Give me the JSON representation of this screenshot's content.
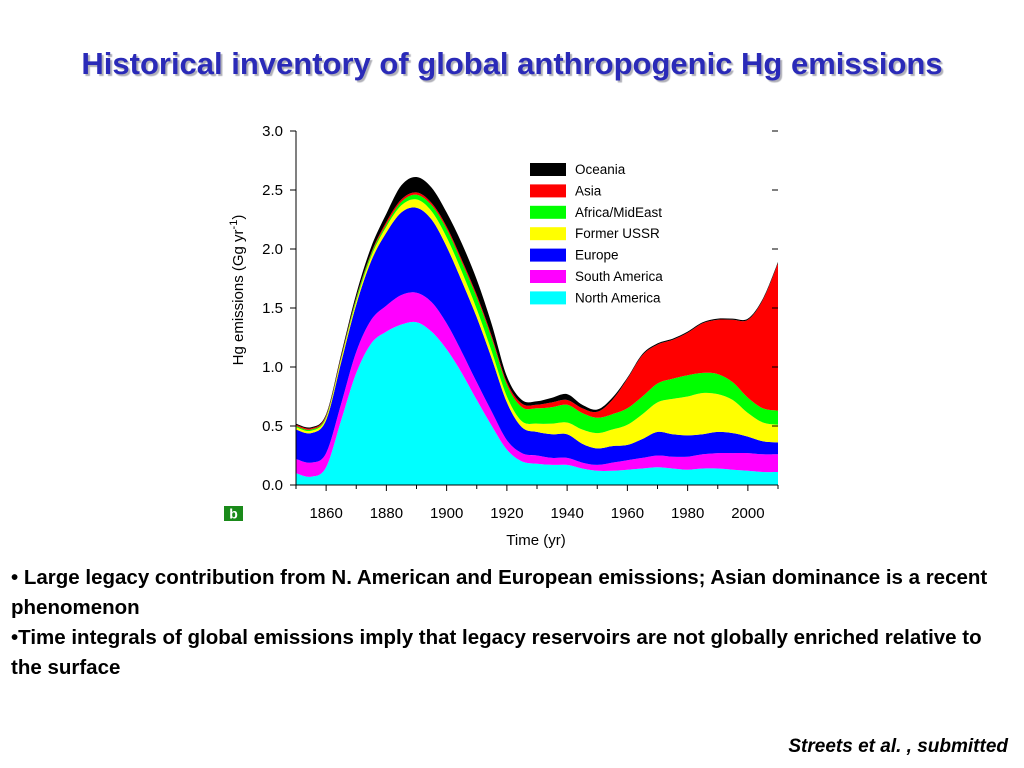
{
  "slide": {
    "title": "Historical inventory of global anthropogenic Hg emissions",
    "bullets": [
      "• Large legacy contribution from N. American and European emissions; Asian dominance is a recent phenomenon",
      "•Time integrals of global emissions imply that legacy reservoirs are not globally enriched relative to the surface"
    ],
    "citation": "Streets et al. , submitted"
  },
  "chart_data": {
    "type": "area",
    "stacked": true,
    "panel_label": "b",
    "xlabel": "Time (yr)",
    "ylabel": "Hg emissions (Gg yr-1)",
    "xlim": [
      1850,
      2010
    ],
    "ylim": [
      0,
      3.0
    ],
    "xticks": [
      1860,
      1880,
      1900,
      1920,
      1940,
      1960,
      1980,
      2000
    ],
    "yticks": [
      "0.0",
      "0.5",
      "1.0",
      "1.5",
      "2.0",
      "2.5",
      "3.0"
    ],
    "legend_position": "top-right",
    "x": [
      1850,
      1855,
      1860,
      1865,
      1870,
      1875,
      1880,
      1885,
      1890,
      1895,
      1900,
      1905,
      1910,
      1915,
      1920,
      1925,
      1930,
      1935,
      1940,
      1945,
      1950,
      1955,
      1960,
      1965,
      1970,
      1975,
      1980,
      1985,
      1990,
      1995,
      2000,
      2005,
      2010
    ],
    "series": [
      {
        "name": "North America",
        "color": "#00ffff",
        "values": [
          0.1,
          0.07,
          0.15,
          0.55,
          0.95,
          1.2,
          1.3,
          1.36,
          1.38,
          1.3,
          1.15,
          0.95,
          0.72,
          0.5,
          0.3,
          0.2,
          0.18,
          0.17,
          0.17,
          0.14,
          0.12,
          0.12,
          0.13,
          0.14,
          0.15,
          0.14,
          0.13,
          0.14,
          0.14,
          0.13,
          0.12,
          0.11,
          0.11
        ]
      },
      {
        "name": "South America",
        "color": "#ff00ff",
        "values": [
          0.12,
          0.12,
          0.12,
          0.14,
          0.18,
          0.2,
          0.22,
          0.25,
          0.25,
          0.25,
          0.22,
          0.18,
          0.15,
          0.12,
          0.08,
          0.07,
          0.07,
          0.06,
          0.06,
          0.05,
          0.05,
          0.07,
          0.08,
          0.09,
          0.1,
          0.1,
          0.11,
          0.12,
          0.13,
          0.14,
          0.15,
          0.15,
          0.15
        ]
      },
      {
        "name": "Europe",
        "color": "#0000ff",
        "values": [
          0.25,
          0.25,
          0.28,
          0.35,
          0.4,
          0.5,
          0.62,
          0.7,
          0.72,
          0.7,
          0.65,
          0.6,
          0.55,
          0.45,
          0.32,
          0.22,
          0.2,
          0.2,
          0.2,
          0.16,
          0.14,
          0.14,
          0.13,
          0.16,
          0.2,
          0.19,
          0.18,
          0.17,
          0.18,
          0.17,
          0.14,
          0.11,
          0.1
        ]
      },
      {
        "name": "Former USSR",
        "color": "#ffff00",
        "values": [
          0.02,
          0.02,
          0.02,
          0.03,
          0.03,
          0.04,
          0.05,
          0.06,
          0.07,
          0.07,
          0.08,
          0.08,
          0.07,
          0.06,
          0.05,
          0.05,
          0.07,
          0.09,
          0.1,
          0.12,
          0.13,
          0.14,
          0.17,
          0.21,
          0.25,
          0.3,
          0.33,
          0.35,
          0.32,
          0.28,
          0.2,
          0.16,
          0.15
        ]
      },
      {
        "name": "Africa/MidEast",
        "color": "#00ff00",
        "values": [
          0.01,
          0.01,
          0.01,
          0.01,
          0.02,
          0.02,
          0.02,
          0.03,
          0.04,
          0.05,
          0.07,
          0.08,
          0.1,
          0.11,
          0.1,
          0.12,
          0.13,
          0.14,
          0.15,
          0.14,
          0.13,
          0.13,
          0.14,
          0.15,
          0.16,
          0.17,
          0.18,
          0.17,
          0.17,
          0.15,
          0.13,
          0.12,
          0.12
        ]
      },
      {
        "name": "Asia",
        "color": "#ff0000",
        "values": [
          0.01,
          0.01,
          0.01,
          0.01,
          0.01,
          0.01,
          0.02,
          0.02,
          0.02,
          0.02,
          0.02,
          0.02,
          0.02,
          0.02,
          0.02,
          0.03,
          0.03,
          0.04,
          0.04,
          0.04,
          0.05,
          0.12,
          0.25,
          0.35,
          0.33,
          0.33,
          0.36,
          0.42,
          0.46,
          0.53,
          0.66,
          0.92,
          1.25
        ]
      },
      {
        "name": "Oceania",
        "color": "#000000",
        "values": [
          0.01,
          0.01,
          0.01,
          0.02,
          0.03,
          0.05,
          0.07,
          0.12,
          0.13,
          0.13,
          0.12,
          0.14,
          0.13,
          0.1,
          0.05,
          0.03,
          0.03,
          0.04,
          0.05,
          0.03,
          0.02,
          0.02,
          0.01,
          0.01,
          0.01,
          0.01,
          0.01,
          0.01,
          0.01,
          0.01,
          0.01,
          0.01,
          0.01
        ]
      }
    ]
  }
}
